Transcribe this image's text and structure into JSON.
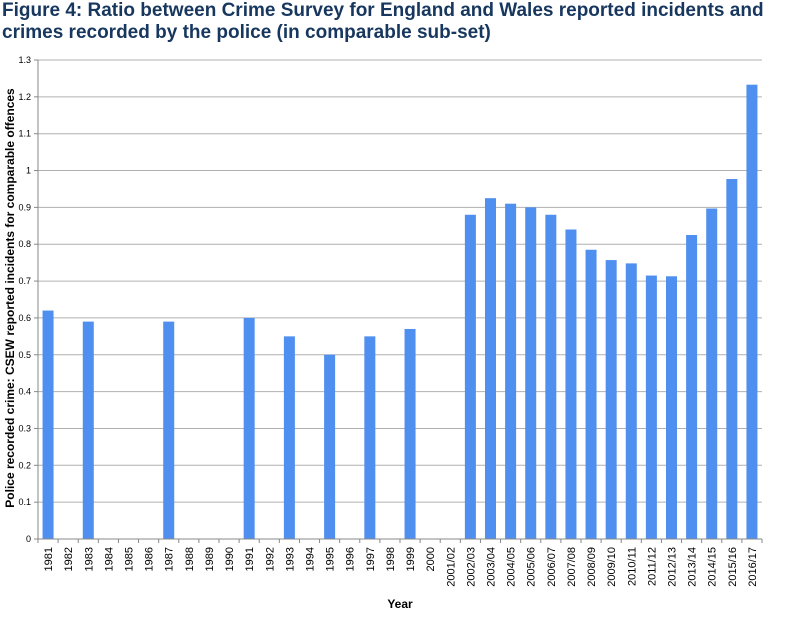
{
  "title_lines": [
    "Figure 4: Ratio between Crime Survey for England and Wales reported incidents and",
    "crimes recorded by the police (in comparable sub-set)"
  ],
  "colors": {
    "bar": "#4f8fef",
    "grid": "#b0b0b0",
    "axis": "#888888",
    "title": "#17375e"
  },
  "chart_data": {
    "type": "bar",
    "title": "Figure 4: Ratio between Crime Survey for England and Wales reported incidents and crimes recorded by the police (in comparable sub-set)",
    "xlabel": "Year",
    "ylabel": "Police recorded crime: CSEW reported incidents for comparable offences",
    "ylim": [
      0,
      1.3
    ],
    "yticks": [
      0,
      0.1,
      0.2,
      0.3,
      0.4,
      0.5,
      0.6,
      0.7,
      0.8,
      0.9,
      1,
      1.1,
      1.2,
      1.3
    ],
    "grid": true,
    "categories": [
      "1981",
      "1982",
      "1983",
      "1984",
      "1985",
      "1986",
      "1987",
      "1988",
      "1989",
      "1990",
      "1991",
      "1992",
      "1993",
      "1994",
      "1995",
      "1996",
      "1997",
      "1998",
      "1999",
      "2000",
      "2001/02",
      "2002/03",
      "2003/04",
      "2004/05",
      "2005/06",
      "2006/07",
      "2007/08",
      "2008/09",
      "2009/10",
      "2010/11",
      "2011/12",
      "2012/13",
      "2013/14",
      "2014/15",
      "2015/16",
      "2016/17"
    ],
    "values": [
      0.62,
      null,
      0.59,
      null,
      null,
      null,
      0.59,
      null,
      null,
      null,
      0.6,
      null,
      0.55,
      null,
      0.5,
      null,
      0.55,
      null,
      0.57,
      null,
      null,
      0.88,
      0.925,
      0.91,
      0.9,
      0.88,
      0.84,
      0.785,
      0.757,
      0.748,
      0.715,
      0.713,
      0.825,
      0.897,
      0.977,
      1.233
    ]
  }
}
